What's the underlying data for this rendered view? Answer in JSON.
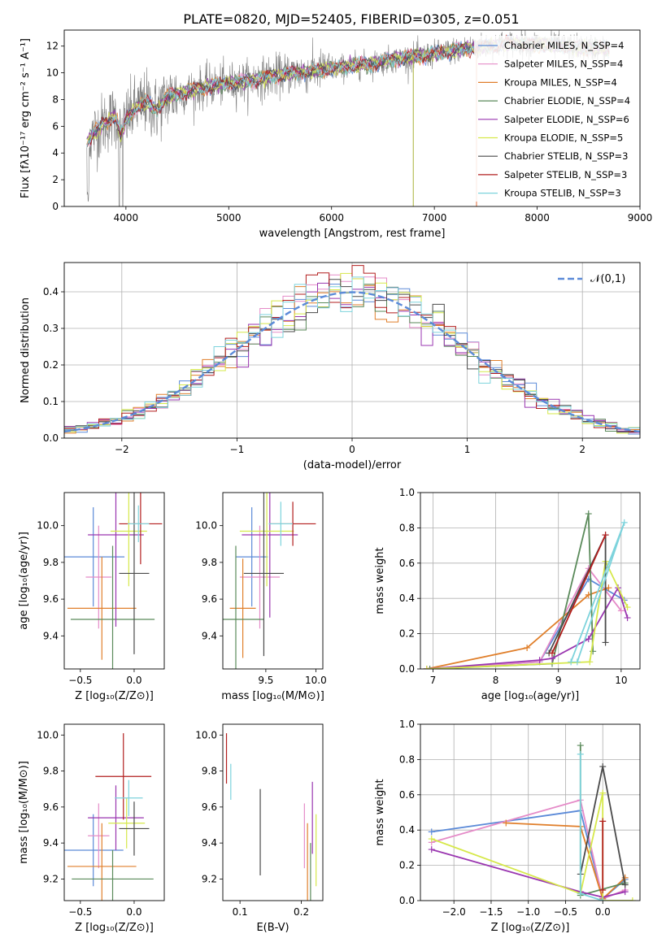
{
  "figure_title": "PLATE=0820, MJD=52405, FIBERID=0305, z=0.051",
  "chart_data": [
    {
      "id": "spectrum",
      "type": "line",
      "xlabel": "wavelength [Angstrom, rest frame]",
      "ylabel": "Flux [fλ10⁻¹⁷ erg cm⁻² s⁻¹ A⁻¹]",
      "xlim": [
        3400,
        9000
      ],
      "ylim": [
        0,
        13.2
      ],
      "xticks": [
        4000,
        5000,
        6000,
        7000,
        8000,
        9000
      ],
      "yticks": [
        0,
        2,
        4,
        6,
        8,
        10,
        12
      ],
      "legend_position": "right",
      "series": [
        {
          "name": "Chabrier MILES, N_SSP=4",
          "color": "#5b8ad8"
        },
        {
          "name": "Salpeter MILES, N_SSP=4",
          "color": "#e58bc8"
        },
        {
          "name": "Kroupa MILES, N_SSP=4",
          "color": "#e07f2b"
        },
        {
          "name": "Chabrier ELODIE, N_SSP=4",
          "color": "#5a8a5a"
        },
        {
          "name": "Salpeter ELODIE, N_SSP=6",
          "color": "#9a36b0"
        },
        {
          "name": "Kroupa ELODIE, N_SSP=5",
          "color": "#d6e84a"
        },
        {
          "name": "Chabrier STELIB, N_SSP=3",
          "color": "#4a4a4a"
        },
        {
          "name": "Salpeter STELIB, N_SSP=3",
          "color": "#b21e1e"
        },
        {
          "name": "Kroupa STELIB, N_SSP=3",
          "color": "#7dd3dc"
        }
      ],
      "continuum_points": [
        [
          3620,
          4.8
        ],
        [
          3700,
          5.6
        ],
        [
          3800,
          6.3
        ],
        [
          3900,
          6.8
        ],
        [
          3950,
          5.2
        ],
        [
          4000,
          6.5
        ],
        [
          4100,
          7.4
        ],
        [
          4200,
          7.8
        ],
        [
          4300,
          7.2
        ],
        [
          4400,
          8.2
        ],
        [
          4600,
          8.6
        ],
        [
          4800,
          9.0
        ],
        [
          5000,
          9.2
        ],
        [
          5200,
          9.4
        ],
        [
          5400,
          9.7
        ],
        [
          5600,
          10.0
        ],
        [
          5800,
          10.1
        ],
        [
          6000,
          10.3
        ],
        [
          6200,
          10.5
        ],
        [
          6400,
          10.7
        ],
        [
          6600,
          11.0
        ],
        [
          6800,
          11.2
        ],
        [
          7000,
          11.4
        ],
        [
          7200,
          11.7
        ],
        [
          7400,
          11.9
        ],
        [
          7600,
          12.1
        ],
        [
          7800,
          12.2
        ],
        [
          8000,
          12.1
        ],
        [
          8200,
          12.0
        ],
        [
          8400,
          11.9
        ],
        [
          8600,
          11.8
        ],
        [
          8700,
          11.7
        ]
      ]
    },
    {
      "id": "residuals",
      "type": "histogram",
      "xlabel": "(data-model)/error",
      "ylabel": "Normed distribution",
      "xlim": [
        -2.5,
        2.5
      ],
      "ylim": [
        0,
        0.48
      ],
      "xticks": [
        -2,
        -1,
        0,
        1,
        2
      ],
      "yticks": [
        0.0,
        0.1,
        0.2,
        0.3,
        0.4
      ],
      "grid": true,
      "legend_position": "top-right",
      "reference": {
        "name": "𝒩(0,1)",
        "color": "#5b8ad8",
        "mean": 0,
        "sigma": 1
      },
      "bin_width": 0.1
    },
    {
      "id": "age_vs_Z",
      "type": "errorbar",
      "xlabel": "Z [log₁₀(Z/Z⊙)]",
      "ylabel": "age  [log₁₀(age/yr)]",
      "xlim": [
        -0.65,
        0.28
      ],
      "ylim": [
        9.22,
        10.18
      ],
      "xticks": [
        -0.5,
        0.0
      ],
      "yticks": [
        9.4,
        9.6,
        9.8,
        10.0
      ],
      "points": [
        {
          "x": -0.38,
          "y": 9.83,
          "xerr": 0.29,
          "yerr": 0.27,
          "color": "#5b8ad8"
        },
        {
          "x": -0.33,
          "y": 9.72,
          "xerr": 0.12,
          "yerr": 0.28,
          "color": "#e58bc8"
        },
        {
          "x": -0.3,
          "y": 9.55,
          "xerr": 0.32,
          "yerr": 0.28,
          "color": "#e07f2b"
        },
        {
          "x": -0.2,
          "y": 9.49,
          "xerr": 0.39,
          "yerr": 0.4,
          "color": "#5a8a5a"
        },
        {
          "x": -0.17,
          "y": 9.95,
          "xerr": 0.26,
          "yerr": 0.5,
          "color": "#9a36b0"
        },
        {
          "x": -0.05,
          "y": 9.97,
          "xerr": 0.17,
          "yerr": 0.3,
          "color": "#d6e84a"
        },
        {
          "x": 0.0,
          "y": 9.74,
          "xerr": 0.14,
          "yerr": 0.44,
          "color": "#4a4a4a"
        },
        {
          "x": 0.06,
          "y": 10.01,
          "xerr": 0.2,
          "yerr": 0.22,
          "color": "#b21e1e"
        },
        {
          "x": 0.04,
          "y": 10.01,
          "xerr": 0.1,
          "yerr": 0.1,
          "color": "#7dd3dc"
        }
      ]
    },
    {
      "id": "age_vs_mass",
      "type": "errorbar",
      "xlabel": "mass [log₁₀(M/M⊙)]",
      "ylabel": "",
      "xlim": [
        9.07,
        10.07
      ],
      "ylim": [
        9.22,
        10.18
      ],
      "xticks": [
        9.5,
        10.0
      ],
      "yticks": [
        9.4,
        9.6,
        9.8,
        10.0
      ],
      "points": [
        {
          "x": 9.36,
          "y": 9.83,
          "xerr": 0.16,
          "yerr": 0.27,
          "color": "#5b8ad8"
        },
        {
          "x": 9.44,
          "y": 9.72,
          "xerr": 0.2,
          "yerr": 0.28,
          "color": "#e58bc8"
        },
        {
          "x": 9.27,
          "y": 9.55,
          "xerr": 0.13,
          "yerr": 0.27,
          "color": "#e07f2b"
        },
        {
          "x": 9.2,
          "y": 9.49,
          "xerr": 0.28,
          "yerr": 0.4,
          "color": "#5a8a5a"
        },
        {
          "x": 9.54,
          "y": 9.95,
          "xerr": 0.28,
          "yerr": 0.45,
          "color": "#9a36b0"
        },
        {
          "x": 9.51,
          "y": 9.97,
          "xerr": 0.27,
          "yerr": 0.3,
          "color": "#d6e84a"
        },
        {
          "x": 9.48,
          "y": 9.74,
          "xerr": 0.2,
          "yerr": 0.45,
          "color": "#4a4a4a"
        },
        {
          "x": 9.77,
          "y": 10.01,
          "xerr": 0.23,
          "yerr": 0.12,
          "color": "#b21e1e"
        },
        {
          "x": 9.65,
          "y": 10.01,
          "xerr": 0.12,
          "yerr": 0.12,
          "color": "#7dd3dc"
        }
      ]
    },
    {
      "id": "weight_vs_age",
      "type": "line",
      "xlabel": "age  [log₁₀(age/yr)]",
      "ylabel": "mass weight",
      "xlim": [
        6.8,
        10.3
      ],
      "ylim": [
        0,
        1.0
      ],
      "xticks": [
        7,
        8,
        9,
        10
      ],
      "yticks": [
        0.0,
        0.2,
        0.4,
        0.6,
        0.8,
        1.0
      ],
      "grid": true,
      "series": [
        {
          "color": "#5b8ad8",
          "points": [
            [
              6.9,
              0.0
            ],
            [
              8.7,
              0.04
            ],
            [
              9.48,
              0.51
            ],
            [
              10.05,
              0.39
            ]
          ]
        },
        {
          "color": "#e58bc8",
          "points": [
            [
              6.9,
              0.0
            ],
            [
              8.7,
              0.04
            ],
            [
              9.48,
              0.57
            ],
            [
              10.0,
              0.33
            ]
          ]
        },
        {
          "color": "#e07f2b",
          "points": [
            [
              6.9,
              0.0
            ],
            [
              8.5,
              0.12
            ],
            [
              9.48,
              0.42
            ],
            [
              9.8,
              0.46
            ]
          ]
        },
        {
          "color": "#5a8a5a",
          "points": [
            [
              6.95,
              0.0
            ],
            [
              8.9,
              0.03
            ],
            [
              9.48,
              0.88
            ],
            [
              9.55,
              0.1
            ]
          ]
        },
        {
          "color": "#9a36b0",
          "points": [
            [
              6.9,
              0.0
            ],
            [
              8.7,
              0.05
            ],
            [
              8.9,
              0.06
            ],
            [
              9.48,
              0.17
            ],
            [
              9.95,
              0.46
            ],
            [
              10.1,
              0.29
            ]
          ]
        },
        {
          "color": "#d6e84a",
          "points": [
            [
              6.9,
              0.0
            ],
            [
              9.5,
              0.04
            ],
            [
              9.75,
              0.61
            ],
            [
              10.1,
              0.35
            ]
          ]
        },
        {
          "color": "#4a4a4a",
          "points": [
            [
              8.85,
              0.09
            ],
            [
              9.75,
              0.76
            ],
            [
              9.75,
              0.15
            ]
          ]
        },
        {
          "color": "#b21e1e",
          "points": [
            [
              8.9,
              0.09
            ],
            [
              9.75,
              0.76
            ]
          ]
        },
        {
          "color": "#7dd3dc",
          "points": [
            [
              9.2,
              0.04
            ],
            [
              10.05,
              0.83
            ],
            [
              9.3,
              0.04
            ]
          ]
        }
      ]
    },
    {
      "id": "mass_vs_Z",
      "type": "errorbar",
      "xlabel": "Z [log₁₀(Z/Z⊙)]",
      "ylabel": "mass [log₁₀(M/M⊙)]",
      "xlim": [
        -0.65,
        0.28
      ],
      "ylim": [
        9.08,
        10.06
      ],
      "xticks": [
        -0.5,
        0.0
      ],
      "yticks": [
        9.2,
        9.4,
        9.6,
        9.8,
        10.0
      ],
      "points": [
        {
          "x": -0.38,
          "y": 9.36,
          "xerr": 0.28,
          "yerr": 0.2,
          "color": "#5b8ad8"
        },
        {
          "x": -0.33,
          "y": 9.44,
          "xerr": 0.1,
          "yerr": 0.18,
          "color": "#e58bc8"
        },
        {
          "x": -0.3,
          "y": 9.27,
          "xerr": 0.32,
          "yerr": 0.24,
          "color": "#e07f2b"
        },
        {
          "x": -0.2,
          "y": 9.2,
          "xerr": 0.38,
          "yerr": 0.16,
          "color": "#5a8a5a"
        },
        {
          "x": -0.17,
          "y": 9.54,
          "xerr": 0.26,
          "yerr": 0.18,
          "color": "#9a36b0"
        },
        {
          "x": -0.07,
          "y": 9.51,
          "xerr": 0.17,
          "yerr": 0.14,
          "color": "#d6e84a"
        },
        {
          "x": 0.0,
          "y": 9.48,
          "xerr": 0.14,
          "yerr": 0.15,
          "color": "#4a4a4a"
        },
        {
          "x": -0.1,
          "y": 9.77,
          "xerr": 0.26,
          "yerr": 0.24,
          "color": "#b21e1e"
        },
        {
          "x": -0.05,
          "y": 9.65,
          "xerr": 0.13,
          "yerr": 0.1,
          "color": "#7dd3dc"
        }
      ]
    },
    {
      "id": "mass_vs_EBV",
      "type": "errorbar",
      "xlabel": "E(B-V)",
      "ylabel": "",
      "xlim": [
        0.072,
        0.235
      ],
      "ylim": [
        9.08,
        10.06
      ],
      "xticks": [
        0.1,
        0.2
      ],
      "yticks": [
        9.2,
        9.4,
        9.6,
        9.8,
        10.0
      ],
      "points": [
        {
          "x": 0.205,
          "y": 9.44,
          "xerr": 0.0,
          "yerr": 0.18,
          "color": "#e58bc8"
        },
        {
          "x": 0.21,
          "y": 9.27,
          "xerr": 0.0,
          "yerr": 0.24,
          "color": "#e07f2b"
        },
        {
          "x": 0.215,
          "y": 9.2,
          "xerr": 0.0,
          "yerr": 0.2,
          "color": "#5a8a5a"
        },
        {
          "x": 0.218,
          "y": 9.54,
          "xerr": 0.0,
          "yerr": 0.2,
          "color": "#9a36b0"
        },
        {
          "x": 0.224,
          "y": 9.36,
          "xerr": 0.0,
          "yerr": 0.2,
          "color": "#d6e84a"
        },
        {
          "x": 0.133,
          "y": 9.46,
          "xerr": 0.0,
          "yerr": 0.24,
          "color": "#4a4a4a"
        },
        {
          "x": 0.078,
          "y": 9.87,
          "xerr": 0.0,
          "yerr": 0.14,
          "color": "#b21e1e"
        },
        {
          "x": 0.085,
          "y": 9.74,
          "xerr": 0.0,
          "yerr": 0.1,
          "color": "#7dd3dc"
        }
      ]
    },
    {
      "id": "weight_vs_Z",
      "type": "line",
      "xlabel": "Z [log₁₀(Z/Z⊙)]",
      "ylabel": "mass weight",
      "xlim": [
        -2.45,
        0.5
      ],
      "ylim": [
        0,
        1.0
      ],
      "xticks": [
        -2.0,
        -1.5,
        -1.0,
        -0.5,
        0.0
      ],
      "yticks": [
        0.0,
        0.2,
        0.4,
        0.6,
        0.8,
        1.0
      ],
      "grid": true,
      "series": [
        {
          "color": "#5b8ad8",
          "points": [
            [
              -2.3,
              0.39
            ],
            [
              -0.3,
              0.51
            ],
            [
              0.0,
              0.01
            ],
            [
              0.3,
              0.12
            ]
          ]
        },
        {
          "color": "#e58bc8",
          "points": [
            [
              -2.3,
              0.33
            ],
            [
              -0.3,
              0.57
            ],
            [
              0.0,
              0.01
            ],
            [
              0.3,
              0.06
            ]
          ]
        },
        {
          "color": "#e07f2b",
          "points": [
            [
              -1.3,
              0.44
            ],
            [
              -0.3,
              0.42
            ],
            [
              0.0,
              0.01
            ],
            [
              0.3,
              0.13
            ]
          ]
        },
        {
          "color": "#5a8a5a",
          "points": [
            [
              -0.3,
              0.88
            ],
            [
              -0.3,
              0.03
            ],
            [
              0.3,
              0.1
            ]
          ]
        },
        {
          "color": "#9a36b0",
          "points": [
            [
              -2.3,
              0.29
            ],
            [
              -0.3,
              0.05
            ],
            [
              0.0,
              0.02
            ],
            [
              0.3,
              0.05
            ]
          ]
        },
        {
          "color": "#d6e84a",
          "points": [
            [
              -2.3,
              0.35
            ],
            [
              -0.3,
              0.04
            ],
            [
              0.0,
              0.61
            ],
            [
              0.0,
              0.0
            ],
            [
              0.4,
              0.0
            ]
          ]
        },
        {
          "color": "#4a4a4a",
          "points": [
            [
              -0.3,
              0.15
            ],
            [
              0.0,
              0.76
            ],
            [
              0.3,
              0.09
            ]
          ]
        },
        {
          "color": "#b21e1e",
          "points": [
            [
              0.0,
              0.45
            ],
            [
              0.0,
              0.06
            ]
          ]
        },
        {
          "color": "#7dd3dc",
          "points": [
            [
              -0.3,
              0.83
            ],
            [
              -0.3,
              0.04
            ],
            [
              0.0,
              0.0
            ]
          ]
        }
      ]
    }
  ]
}
